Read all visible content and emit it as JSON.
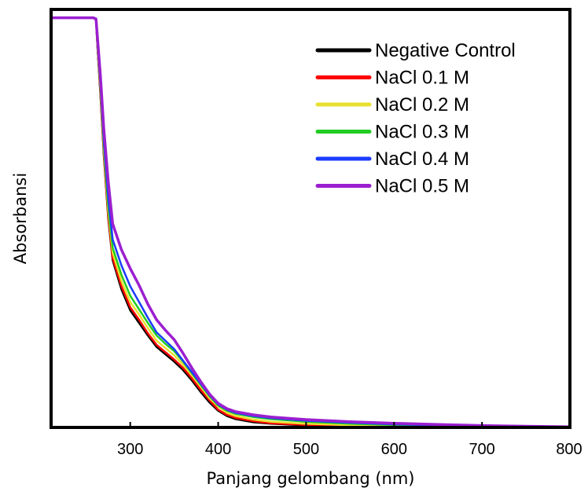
{
  "chart_data": {
    "type": "line",
    "title": "",
    "xlabel": "Panjang gelombang (nm)",
    "ylabel": "Absorbansi",
    "xlim": [
      210,
      800
    ],
    "ylim": [
      0,
      4
    ],
    "x_ticks": [
      300,
      400,
      500,
      600,
      700,
      800
    ],
    "y_ticks": [],
    "grid": false,
    "legend_position": "top-right",
    "x": [
      210,
      255,
      258,
      261,
      263,
      266,
      270,
      275,
      280,
      290,
      300,
      310,
      320,
      330,
      340,
      350,
      360,
      370,
      380,
      390,
      400,
      410,
      420,
      440,
      460,
      500,
      550,
      600,
      650,
      700,
      750,
      800
    ],
    "series": [
      {
        "name": "Negative Control",
        "color": "#000000",
        "values": [
          3.92,
          3.92,
          3.92,
          3.9,
          3.6,
          3.2,
          2.6,
          2.0,
          1.6,
          1.32,
          1.12,
          1.0,
          0.88,
          0.77,
          0.7,
          0.63,
          0.55,
          0.45,
          0.34,
          0.24,
          0.16,
          0.11,
          0.08,
          0.05,
          0.035,
          0.02,
          0.012,
          0.008,
          0.005,
          0.003,
          0.002,
          0.001
        ]
      },
      {
        "name": "NaCl 0.1 M",
        "color": "#ff0000",
        "values": [
          3.92,
          3.92,
          3.92,
          3.9,
          3.61,
          3.22,
          2.62,
          2.02,
          1.62,
          1.35,
          1.15,
          1.03,
          0.9,
          0.79,
          0.72,
          0.65,
          0.57,
          0.47,
          0.36,
          0.26,
          0.17,
          0.12,
          0.09,
          0.06,
          0.04,
          0.025,
          0.015,
          0.01,
          0.007,
          0.004,
          0.003,
          0.002
        ]
      },
      {
        "name": "NaCl 0.2 M",
        "color": "#e8e030",
        "values": [
          3.92,
          3.92,
          3.92,
          3.9,
          3.63,
          3.25,
          2.66,
          2.07,
          1.67,
          1.4,
          1.2,
          1.08,
          0.95,
          0.83,
          0.76,
          0.69,
          0.6,
          0.5,
          0.39,
          0.28,
          0.2,
          0.14,
          0.11,
          0.075,
          0.055,
          0.035,
          0.022,
          0.015,
          0.01,
          0.007,
          0.005,
          0.003
        ]
      },
      {
        "name": "NaCl 0.3 M",
        "color": "#22cc22",
        "values": [
          3.92,
          3.92,
          3.92,
          3.9,
          3.64,
          3.28,
          2.7,
          2.12,
          1.72,
          1.46,
          1.26,
          1.13,
          1.0,
          0.88,
          0.8,
          0.73,
          0.63,
          0.52,
          0.41,
          0.3,
          0.21,
          0.16,
          0.13,
          0.1,
          0.08,
          0.055,
          0.035,
          0.025,
          0.015,
          0.01,
          0.007,
          0.004
        ]
      },
      {
        "name": "NaCl 0.4 M",
        "color": "#1a3cff",
        "values": [
          3.92,
          3.92,
          3.92,
          3.9,
          3.66,
          3.31,
          2.75,
          2.2,
          1.8,
          1.55,
          1.35,
          1.2,
          1.05,
          0.91,
          0.83,
          0.75,
          0.64,
          0.53,
          0.42,
          0.31,
          0.22,
          0.17,
          0.14,
          0.11,
          0.09,
          0.065,
          0.045,
          0.03,
          0.02,
          0.013,
          0.008,
          0.005
        ]
      },
      {
        "name": "NaCl 0.5 M",
        "color": "#9b1fd0",
        "values": [
          3.92,
          3.92,
          3.92,
          3.91,
          3.7,
          3.38,
          2.85,
          2.35,
          1.95,
          1.7,
          1.52,
          1.36,
          1.18,
          1.03,
          0.93,
          0.84,
          0.71,
          0.57,
          0.44,
          0.32,
          0.23,
          0.18,
          0.15,
          0.12,
          0.1,
          0.075,
          0.055,
          0.04,
          0.028,
          0.018,
          0.011,
          0.006
        ]
      }
    ]
  }
}
